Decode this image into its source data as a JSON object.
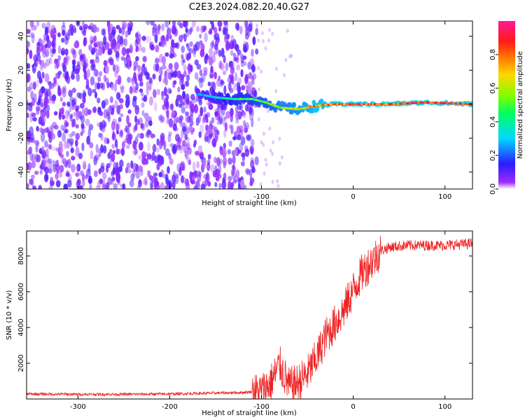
{
  "title": "C2E3.2024.082.20.40.G27",
  "colors": {
    "snr_line": "#ee2222",
    "scatter_base": "#7a1dff",
    "axis": "#000000"
  },
  "chart_data": [
    {
      "type": "heatmap",
      "xlabel": "Height of straight line (km)",
      "ylabel": "Frequency (Hz)",
      "xlim": [
        -356,
        130
      ],
      "ylim": [
        -50,
        49
      ],
      "xticks": [
        -300,
        -200,
        -100,
        0,
        100
      ],
      "yticks": [
        -40,
        -20,
        0,
        20,
        40
      ],
      "grid": false,
      "colorbar": {
        "label": "Normalized spectral amplitude",
        "range": [
          0,
          1
        ],
        "ticks": [
          "0.0",
          "0.2",
          "0.4",
          "0.6",
          "0.8"
        ],
        "colormap": "hsv-rainbow (violet→blue→cyan→green→yellow→orange→red→magenta)"
      },
      "signal_track": [
        {
          "x": -170,
          "y": 6,
          "amp": 0.25
        },
        {
          "x": -150,
          "y": 4,
          "amp": 0.35
        },
        {
          "x": -130,
          "y": 3,
          "amp": 0.45
        },
        {
          "x": -110,
          "y": 3,
          "amp": 0.5
        },
        {
          "x": -95,
          "y": 1,
          "amp": 0.55
        },
        {
          "x": -80,
          "y": -2,
          "amp": 0.65
        },
        {
          "x": -60,
          "y": -3,
          "amp": 0.7
        },
        {
          "x": -40,
          "y": -1,
          "amp": 0.8
        },
        {
          "x": -20,
          "y": 0,
          "amp": 0.85
        },
        {
          "x": 0,
          "y": 0,
          "amp": 0.9
        },
        {
          "x": 40,
          "y": 0,
          "amp": 0.9
        },
        {
          "x": 80,
          "y": 1,
          "amp": 0.95
        },
        {
          "x": 130,
          "y": 0,
          "amp": 0.9
        }
      ],
      "noise_region": {
        "x_from": -356,
        "x_to": -105,
        "level": "broadband low amplitude (0.0–0.2)"
      }
    },
    {
      "type": "line",
      "xlabel": "Height of straight line (km)",
      "ylabel": "SNR (10 * v/v)",
      "xlim": [
        -356,
        130
      ],
      "ylim": [
        0,
        9400
      ],
      "xticks": [
        -300,
        -200,
        -100,
        0,
        100
      ],
      "yticks": [
        2000,
        4000,
        6000,
        8000
      ],
      "grid": false,
      "series": [
        {
          "x": [
            -356,
            -300,
            -250,
            -200,
            -150,
            -120,
            -100,
            -90,
            -80,
            -70,
            -60,
            -50,
            -40,
            -30,
            -20,
            -10,
            0,
            10,
            20,
            30,
            40,
            60,
            80,
            100,
            130
          ],
          "y": [
            250,
            230,
            230,
            250,
            300,
            330,
            420,
            900,
            1900,
            700,
            900,
            1400,
            2300,
            3500,
            4200,
            5000,
            6100,
            7100,
            7700,
            8300,
            8500,
            8600,
            8600,
            8600,
            8700
          ]
        }
      ]
    }
  ]
}
